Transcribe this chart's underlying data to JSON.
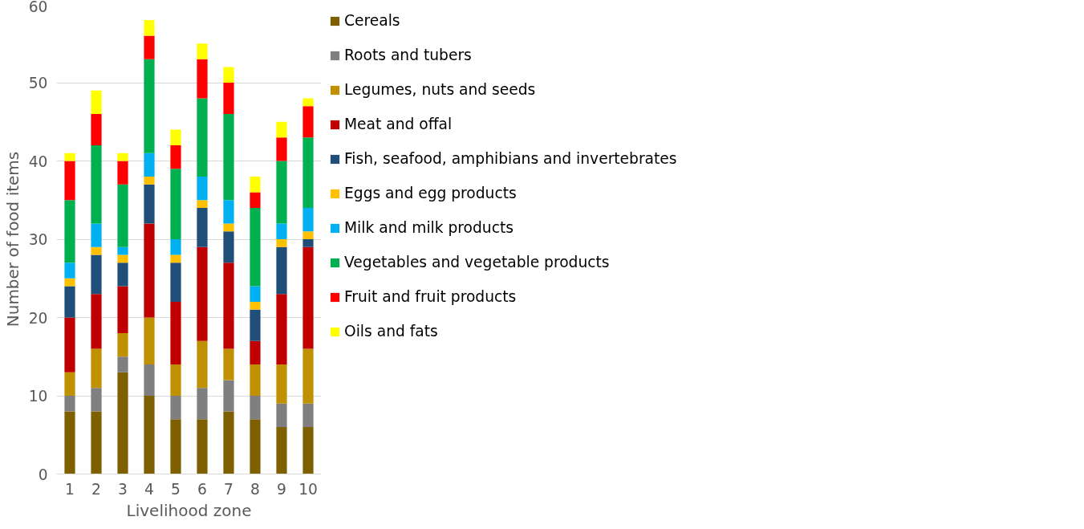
{
  "chart_data": {
    "type": "bar",
    "stacked": true,
    "xlabel": "Livelihood zone",
    "ylabel": "Number of food items",
    "categories": [
      "1",
      "2",
      "3",
      "4",
      "5",
      "6",
      "7",
      "8",
      "9",
      "10"
    ],
    "ylim": [
      0,
      60
    ],
    "yticks": [
      0,
      10,
      20,
      30,
      40,
      50,
      60
    ],
    "grid": "y",
    "legend": "right",
    "series": [
      {
        "name": "Cereals",
        "color": "#7f6000",
        "values": [
          8,
          8,
          13,
          10,
          7,
          7,
          8,
          7,
          6,
          6
        ]
      },
      {
        "name": "Roots and tubers",
        "color": "#7f7f7f",
        "values": [
          2,
          3,
          2,
          4,
          3,
          4,
          4,
          3,
          3,
          3
        ]
      },
      {
        "name": "Legumes, nuts and seeds",
        "color": "#bf9000",
        "values": [
          3,
          5,
          3,
          6,
          4,
          6,
          4,
          4,
          5,
          7
        ]
      },
      {
        "name": "Meat and offal",
        "color": "#c00000",
        "values": [
          7,
          7,
          6,
          12,
          8,
          12,
          11,
          3,
          9,
          13
        ]
      },
      {
        "name": "Fish, seafood, amphibians and invertebrates",
        "color": "#1f4e79",
        "values": [
          4,
          5,
          3,
          5,
          5,
          5,
          4,
          4,
          6,
          1
        ]
      },
      {
        "name": "Eggs and egg products",
        "color": "#ffc000",
        "values": [
          1,
          1,
          1,
          1,
          1,
          1,
          1,
          1,
          1,
          1
        ]
      },
      {
        "name": "Milk and milk products",
        "color": "#00b0f0",
        "values": [
          2,
          3,
          1,
          3,
          2,
          3,
          3,
          2,
          2,
          3
        ]
      },
      {
        "name": "Vegetables and vegetable products",
        "color": "#00b050",
        "values": [
          8,
          10,
          8,
          12,
          9,
          10,
          11,
          10,
          8,
          9
        ]
      },
      {
        "name": "Fruit and fruit products",
        "color": "#ff0000",
        "values": [
          5,
          4,
          3,
          3,
          3,
          5,
          4,
          2,
          3,
          4
        ]
      },
      {
        "name": "Oils and fats",
        "color": "#ffff00",
        "values": [
          1,
          3,
          1,
          2,
          2,
          2,
          2,
          2,
          2,
          1
        ]
      }
    ]
  }
}
